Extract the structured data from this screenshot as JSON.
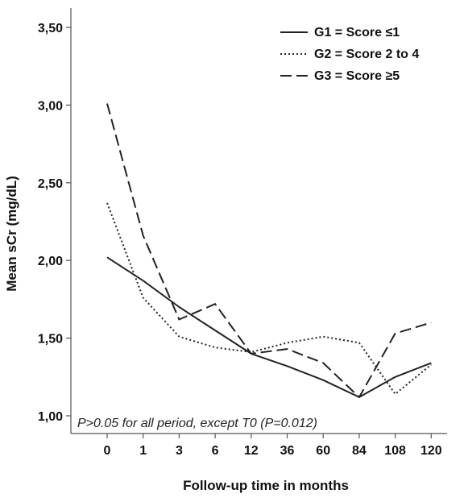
{
  "chart_data": {
    "type": "line",
    "title": "",
    "xlabel": "Follow-up time in months",
    "ylabel": "Mean sCr (mg/dL)",
    "categories": [
      "0",
      "1",
      "3",
      "6",
      "12",
      "36",
      "60",
      "84",
      "108",
      "120"
    ],
    "y_ticks": [
      "1,00",
      "1,50",
      "2,00",
      "2,50",
      "3,00",
      "3,50"
    ],
    "ylim": [
      1.0,
      3.5
    ],
    "grid": false,
    "legend_position": "top-right",
    "series": [
      {
        "name": "G1 = Score ≤1",
        "style": "solid",
        "values": [
          2.02,
          1.87,
          1.7,
          1.55,
          1.4,
          1.32,
          1.23,
          1.12,
          1.25,
          1.34
        ]
      },
      {
        "name": "G2 = Score 2 to 4",
        "style": "dotted",
        "values": [
          2.37,
          1.76,
          1.51,
          1.44,
          1.41,
          1.47,
          1.51,
          1.47,
          1.14,
          1.33
        ]
      },
      {
        "name": "G3 = Score ≥5",
        "style": "dashed",
        "values": [
          3.01,
          2.16,
          1.62,
          1.72,
          1.4,
          1.43,
          1.34,
          1.12,
          1.53,
          1.6
        ]
      }
    ],
    "annotation": "P>0.05 for all period, except T0 (P=0.012)"
  }
}
